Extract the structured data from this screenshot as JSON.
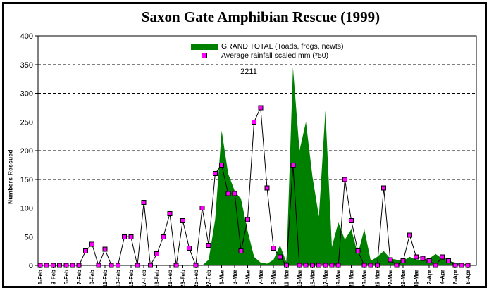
{
  "title": "Saxon Gate Amphibian Rescue (1999)",
  "annotation": "2211",
  "legend": {
    "items": [
      {
        "label": "GRAND TOTAL (Toads, frogs, newts)",
        "swatch": "area",
        "color": "#008000"
      },
      {
        "label": "Average rainfall scaled mm (*50)",
        "swatch": "line-marker",
        "line_color": "#000000",
        "marker_color": "#FF00FF"
      }
    ]
  },
  "y_axis": {
    "title": "Numbers Rescued",
    "min": 0,
    "max": 400,
    "step": 50,
    "tick_labels": [
      "0",
      "50",
      "100",
      "150",
      "200",
      "250",
      "300",
      "350",
      "400"
    ]
  },
  "x_axis": {
    "tick_every": 2,
    "tick_labels": [
      "1-Feb",
      "3-Feb",
      "5-Feb",
      "7-Feb",
      "9-Feb",
      "11-Feb",
      "13-Feb",
      "15-Feb",
      "17-Feb",
      "19-Feb",
      "21-Feb",
      "23-Feb",
      "25-Feb",
      "27-Feb",
      "1-Mar",
      "3-Mar",
      "5-Mar",
      "7-Mar",
      "9-Mar",
      "11-Mar",
      "13-Mar",
      "15-Mar",
      "17-Mar",
      "19-Mar",
      "21-Mar",
      "23-Mar",
      "25-Mar",
      "27-Mar",
      "29-Mar",
      "31-Mar",
      "2-Apr",
      "4-Apr",
      "6-Apr",
      "8-Apr"
    ]
  },
  "chart_data": {
    "type": "combo",
    "grid": "horizontal-dashed",
    "legend_position": "top-center-inside",
    "ylim": [
      0,
      400
    ],
    "x": [
      "1-Feb",
      "2-Feb",
      "3-Feb",
      "4-Feb",
      "5-Feb",
      "6-Feb",
      "7-Feb",
      "8-Feb",
      "9-Feb",
      "10-Feb",
      "11-Feb",
      "12-Feb",
      "13-Feb",
      "14-Feb",
      "15-Feb",
      "16-Feb",
      "17-Feb",
      "18-Feb",
      "19-Feb",
      "20-Feb",
      "21-Feb",
      "22-Feb",
      "23-Feb",
      "24-Feb",
      "25-Feb",
      "26-Feb",
      "27-Feb",
      "28-Feb",
      "1-Mar",
      "2-Mar",
      "3-Mar",
      "4-Mar",
      "5-Mar",
      "6-Mar",
      "7-Mar",
      "8-Mar",
      "9-Mar",
      "10-Mar",
      "11-Mar",
      "12-Mar",
      "13-Mar",
      "14-Mar",
      "15-Mar",
      "16-Mar",
      "17-Mar",
      "18-Mar",
      "19-Mar",
      "20-Mar",
      "21-Mar",
      "22-Mar",
      "23-Mar",
      "24-Mar",
      "25-Mar",
      "26-Mar",
      "27-Mar",
      "28-Mar",
      "29-Mar",
      "30-Mar",
      "31-Mar",
      "1-Apr",
      "2-Apr",
      "3-Apr",
      "4-Apr",
      "5-Apr",
      "6-Apr",
      "7-Apr",
      "8-Apr"
    ],
    "series": [
      {
        "name": "GRAND TOTAL (Toads, frogs, newts)",
        "type": "area",
        "color": "#008000",
        "values": [
          0,
          0,
          0,
          0,
          0,
          0,
          0,
          0,
          0,
          0,
          0,
          0,
          0,
          0,
          0,
          0,
          0,
          0,
          0,
          0,
          0,
          0,
          0,
          0,
          0,
          0,
          10,
          80,
          235,
          160,
          130,
          115,
          60,
          15,
          5,
          3,
          10,
          35,
          5,
          345,
          200,
          250,
          155,
          85,
          270,
          32,
          75,
          45,
          63,
          20,
          63,
          8,
          15,
          25,
          12,
          10,
          8,
          15,
          10,
          8,
          12,
          20,
          12,
          8,
          5,
          3,
          2
        ]
      },
      {
        "name": "Average rainfall scaled mm (*50)",
        "type": "line",
        "marker": "square",
        "line_color": "#000000",
        "marker_color": "#FF00FF",
        "values": [
          0,
          0,
          0,
          0,
          0,
          0,
          0,
          25,
          37,
          0,
          28,
          0,
          0,
          50,
          50,
          0,
          110,
          0,
          20,
          50,
          90,
          0,
          78,
          30,
          0,
          100,
          35,
          160,
          175,
          125,
          125,
          25,
          80,
          250,
          275,
          135,
          30,
          15,
          0,
          175,
          0,
          0,
          0,
          0,
          0,
          0,
          0,
          150,
          78,
          25,
          0,
          0,
          0,
          135,
          10,
          0,
          8,
          53,
          15,
          12,
          8,
          0,
          15,
          8,
          0,
          0,
          0
        ]
      }
    ]
  }
}
